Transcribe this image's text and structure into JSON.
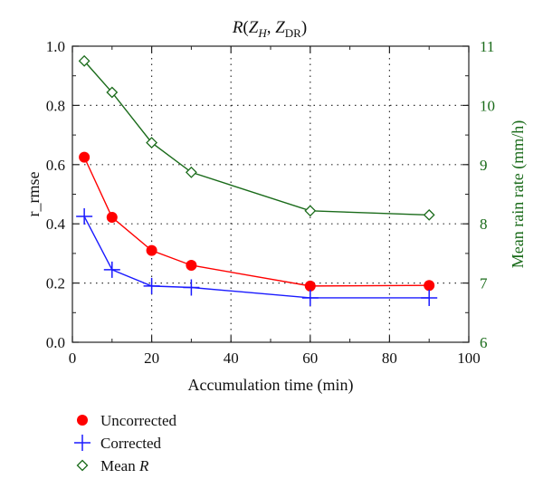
{
  "chart_data": {
    "type": "line",
    "title": {
      "prefix": "R",
      "open": "(",
      "zh_main": "Z",
      "zh_sub": "H",
      "sep": ", ",
      "zdr_main": "Z",
      "zdr_sub": "DR",
      "close": ")"
    },
    "xlabel": "Accumulation time (min)",
    "ylabel": "r_rmse",
    "y2label": "Mean rain rate (mm/h)",
    "xlim": [
      0,
      100
    ],
    "ylim": [
      0.0,
      1.0
    ],
    "y2lim": [
      6,
      11
    ],
    "x_ticks": [
      "0",
      "20",
      "40",
      "60",
      "80",
      "100"
    ],
    "y_ticks": [
      "0.0",
      "0.2",
      "0.4",
      "0.6",
      "0.8",
      "1.0"
    ],
    "y2_ticks": [
      "6",
      "7",
      "8",
      "9",
      "10",
      "11"
    ],
    "grid": "dotted",
    "legend_position": "bottom-left",
    "x": [
      3,
      10,
      20,
      30,
      60,
      90
    ],
    "series": [
      {
        "name": "Uncorrected",
        "axis": "left",
        "color": "#ff0000",
        "marker": "filled-circle",
        "values": [
          0.625,
          0.422,
          0.31,
          0.26,
          0.19,
          0.192
        ]
      },
      {
        "name": "Corrected",
        "axis": "left",
        "color": "#1a1aff",
        "marker": "plus",
        "values": [
          0.425,
          0.245,
          0.19,
          0.185,
          0.15,
          0.15
        ]
      },
      {
        "name_prefix": "Mean ",
        "name_var": "R",
        "axis": "right",
        "color": "#1a6b1a",
        "marker": "open-diamond",
        "values": [
          10.75,
          10.22,
          9.37,
          8.87,
          8.22,
          8.15
        ]
      }
    ]
  }
}
